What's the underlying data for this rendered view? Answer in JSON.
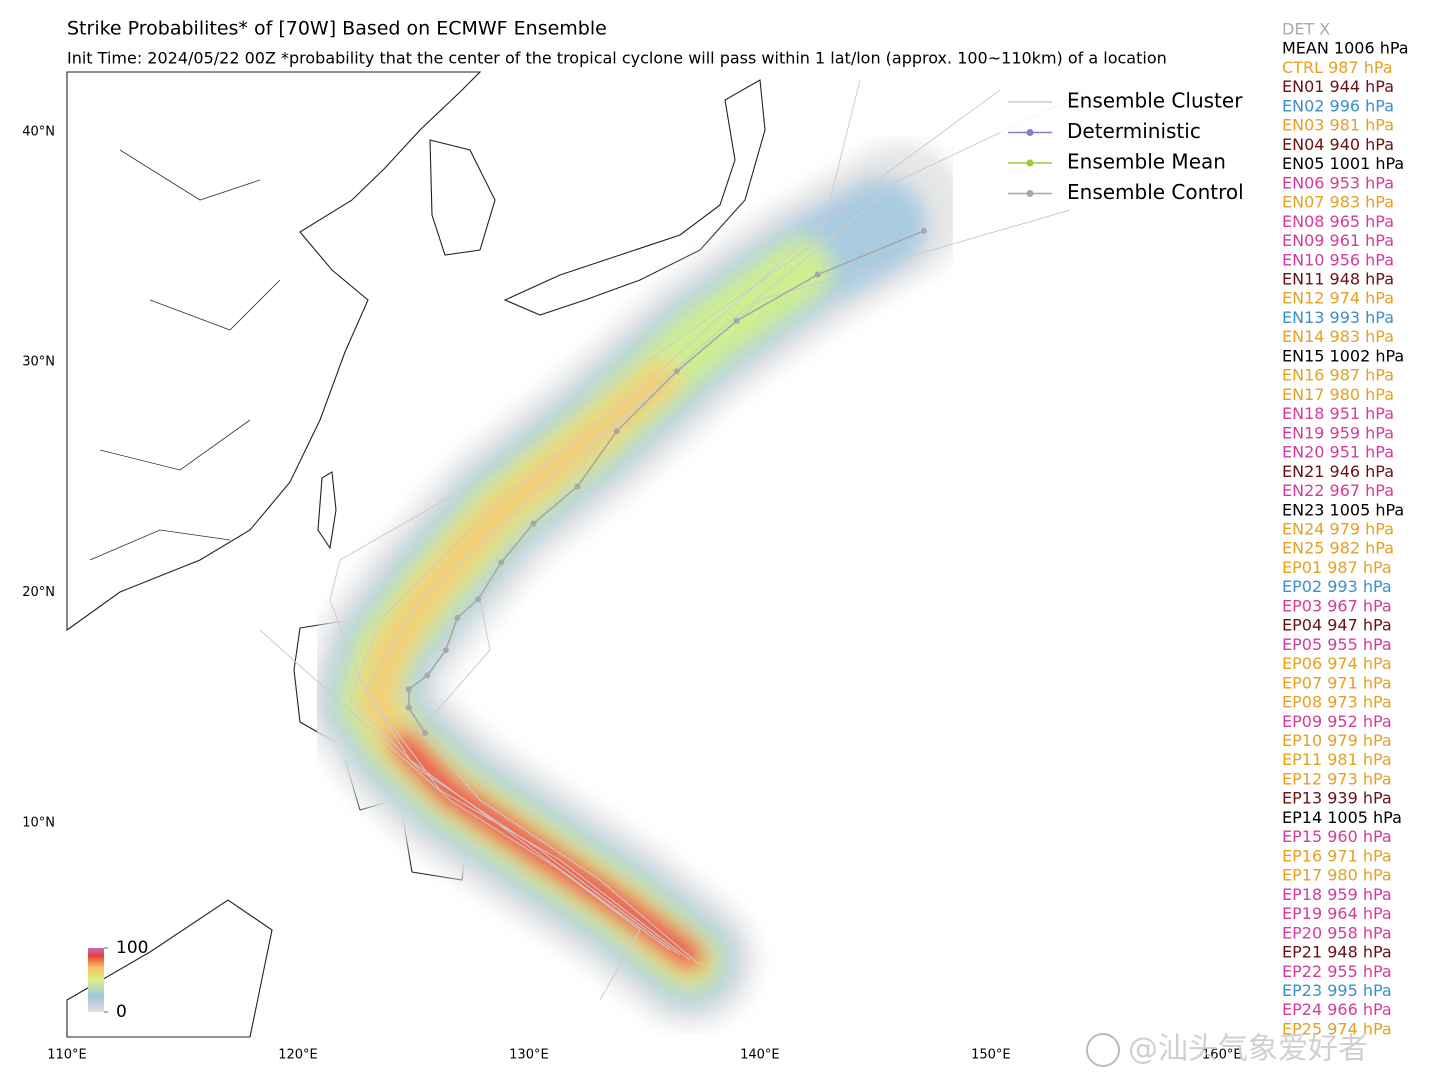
{
  "title": "Strike Probabilites* of [70W] Based on ECMWF Ensemble",
  "subtitle": "Init Time: 2024/05/22 00Z  *probability that the center of the tropical cyclone will pass within 1 lat/lon (approx. 100~110km) of a location",
  "map": {
    "lonlim": [
      110,
      162
    ],
    "latlim": [
      0.7,
      42.6
    ],
    "lon_ticks": [
      {
        "value": 110,
        "label": "110°E"
      },
      {
        "value": 120,
        "label": "120°E"
      },
      {
        "value": 130,
        "label": "130°E"
      },
      {
        "value": 140,
        "label": "140°E"
      },
      {
        "value": 150,
        "label": "150°E"
      },
      {
        "value": 160,
        "label": "160°E"
      }
    ],
    "lat_ticks": [
      {
        "value": 10,
        "label": "10°N"
      },
      {
        "value": 20,
        "label": "20°N"
      },
      {
        "value": 30,
        "label": "30°N"
      },
      {
        "value": 40,
        "label": "40°N"
      }
    ],
    "control_track": {
      "name": "Ensemble Control",
      "color": "#a8a8a8",
      "lon": [
        125.5,
        124.8,
        124.8,
        125.6,
        126.4,
        126.9,
        127.8,
        128.8,
        130.2,
        132.1,
        133.8,
        136.4,
        139.0,
        142.5,
        147.1
      ],
      "lat": [
        13.9,
        15.0,
        15.8,
        16.4,
        17.5,
        18.9,
        19.7,
        21.3,
        23.0,
        24.6,
        27.0,
        29.6,
        31.8,
        33.8,
        35.7
      ]
    }
  },
  "legend": [
    {
      "label": "Ensemble Cluster",
      "color": "#cccccc",
      "marker": false
    },
    {
      "label": "Deterministic",
      "color": "#8e7cc3",
      "marker": true
    },
    {
      "label": "Ensemble Mean",
      "color": "#9acd32",
      "marker": true
    },
    {
      "label": "Ensemble Control",
      "color": "#a8a8a8",
      "marker": true
    }
  ],
  "colorbar": {
    "lim": [
      0,
      100
    ],
    "ticks": [
      0,
      100
    ]
  },
  "members": [
    {
      "label": "DET X",
      "color": "#aaaaaa"
    },
    {
      "label": "MEAN 1006 hPa",
      "color": "#000000"
    },
    {
      "label": "CTRL 987 hPa",
      "color": "#e6a020"
    },
    {
      "label": "EN01 944 hPa",
      "color": "#6b0f14"
    },
    {
      "label": "EN02 996 hPa",
      "color": "#3a8fc8"
    },
    {
      "label": "EN03 981 hPa",
      "color": "#e6a020"
    },
    {
      "label": "EN04 940 hPa",
      "color": "#6b0f14"
    },
    {
      "label": "EN05 1001 hPa",
      "color": "#000000"
    },
    {
      "label": "EN06 953 hPa",
      "color": "#d63a9a"
    },
    {
      "label": "EN07 983 hPa",
      "color": "#e6a020"
    },
    {
      "label": "EN08 965 hPa",
      "color": "#d63a9a"
    },
    {
      "label": "EN09 961 hPa",
      "color": "#d63a9a"
    },
    {
      "label": "EN10 956 hPa",
      "color": "#d63a9a"
    },
    {
      "label": "EN11 948 hPa",
      "color": "#6b0f14"
    },
    {
      "label": "EN12 974 hPa",
      "color": "#e6a020"
    },
    {
      "label": "EN13 993 hPa",
      "color": "#3a8fc8"
    },
    {
      "label": "EN14 983 hPa",
      "color": "#e6a020"
    },
    {
      "label": "EN15 1002 hPa",
      "color": "#000000"
    },
    {
      "label": "EN16 987 hPa",
      "color": "#e6a020"
    },
    {
      "label": "EN17 980 hPa",
      "color": "#e6a020"
    },
    {
      "label": "EN18 951 hPa",
      "color": "#d63a9a"
    },
    {
      "label": "EN19 959 hPa",
      "color": "#d63a9a"
    },
    {
      "label": "EN20 951 hPa",
      "color": "#d63a9a"
    },
    {
      "label": "EN21 946 hPa",
      "color": "#6b0f14"
    },
    {
      "label": "EN22 967 hPa",
      "color": "#d63a9a"
    },
    {
      "label": "EN23 1005 hPa",
      "color": "#000000"
    },
    {
      "label": "EN24 979 hPa",
      "color": "#e6a020"
    },
    {
      "label": "EN25 982 hPa",
      "color": "#e6a020"
    },
    {
      "label": "EP01 987 hPa",
      "color": "#e6a020"
    },
    {
      "label": "EP02 993 hPa",
      "color": "#3a8fc8"
    },
    {
      "label": "EP03 967 hPa",
      "color": "#d63a9a"
    },
    {
      "label": "EP04 947 hPa",
      "color": "#6b0f14"
    },
    {
      "label": "EP05 955 hPa",
      "color": "#d63a9a"
    },
    {
      "label": "EP06 974 hPa",
      "color": "#e6a020"
    },
    {
      "label": "EP07 971 hPa",
      "color": "#e6a020"
    },
    {
      "label": "EP08 973 hPa",
      "color": "#e6a020"
    },
    {
      "label": "EP09 952 hPa",
      "color": "#d63a9a"
    },
    {
      "label": "EP10 979 hPa",
      "color": "#e6a020"
    },
    {
      "label": "EP11 981 hPa",
      "color": "#e6a020"
    },
    {
      "label": "EP12 973 hPa",
      "color": "#e6a020"
    },
    {
      "label": "EP13 939 hPa",
      "color": "#6b0f14"
    },
    {
      "label": "EP14 1005 hPa",
      "color": "#000000"
    },
    {
      "label": "EP15 960 hPa",
      "color": "#d63a9a"
    },
    {
      "label": "EP16 971 hPa",
      "color": "#e6a020"
    },
    {
      "label": "EP17 980 hPa",
      "color": "#e6a020"
    },
    {
      "label": "EP18 959 hPa",
      "color": "#d63a9a"
    },
    {
      "label": "EP19 964 hPa",
      "color": "#d63a9a"
    },
    {
      "label": "EP20 958 hPa",
      "color": "#d63a9a"
    },
    {
      "label": "EP21 948 hPa",
      "color": "#6b0f14"
    },
    {
      "label": "EP22 955 hPa",
      "color": "#d63a9a"
    },
    {
      "label": "EP23 995 hPa",
      "color": "#3a8fc8"
    },
    {
      "label": "EP24 966 hPa",
      "color": "#d63a9a"
    },
    {
      "label": "EP25 974 hPa",
      "color": "#e6a020"
    }
  ],
  "watermark": "@汕头气象爱好者"
}
